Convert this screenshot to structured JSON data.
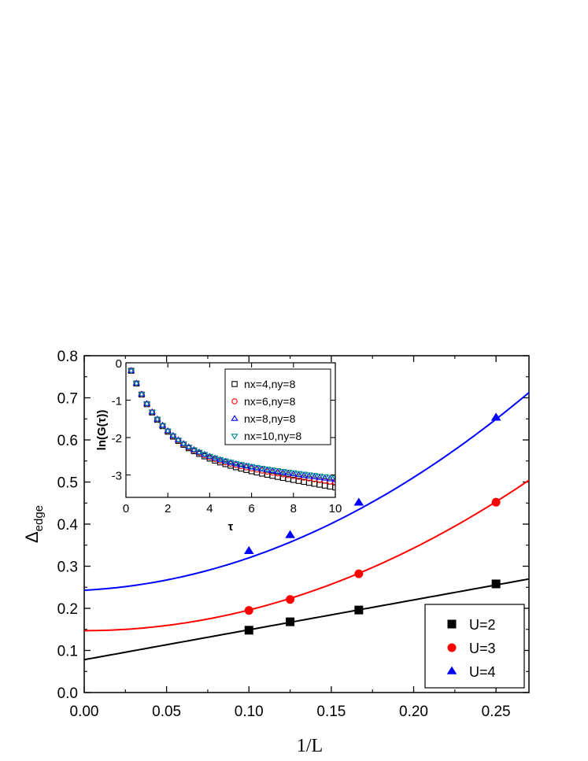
{
  "chart_data": [
    {
      "id": "main",
      "type": "scatter",
      "xlabel": "1/L",
      "ylabel_main": "Δ",
      "ylabel_sub": "edge",
      "xlim": [
        0,
        0.27
      ],
      "ylim": [
        0,
        0.8
      ],
      "xticks": [
        "0.00",
        "0.05",
        "0.10",
        "0.15",
        "0.20",
        "0.25"
      ],
      "yticks": [
        "0.0",
        "0.1",
        "0.2",
        "0.3",
        "0.4",
        "0.5",
        "0.6",
        "0.7",
        "0.8"
      ],
      "legend_position": "bottom-right",
      "series": [
        {
          "name": "U=2",
          "marker": "square",
          "color": "#000000",
          "x": [
            0.1,
            0.125,
            0.1667,
            0.25
          ],
          "y": [
            0.148,
            0.168,
            0.196,
            0.258
          ],
          "fit": {
            "kind": "poly",
            "coef": [
              0.078,
              0.71,
              0.0
            ]
          }
        },
        {
          "name": "U=3",
          "marker": "circle",
          "color": "#ff0000",
          "x": [
            0.1,
            0.125,
            0.1667,
            0.25
          ],
          "y": [
            0.195,
            0.221,
            0.282,
            0.452
          ],
          "fit": {
            "kind": "poly",
            "coef": [
              0.147,
              0.0,
              4.9
            ]
          }
        },
        {
          "name": "U=4",
          "marker": "triangle",
          "color": "#0000ff",
          "x": [
            0.1,
            0.125,
            0.1667,
            0.25
          ],
          "y": [
            0.336,
            0.374,
            0.451,
            0.653
          ],
          "fit": {
            "kind": "poly",
            "coef": [
              0.243,
              0.2,
              5.7
            ]
          }
        }
      ]
    },
    {
      "id": "inset",
      "type": "scatter",
      "xlabel": "τ",
      "ylabel": "ln(G(τ))",
      "xlim": [
        0,
        10
      ],
      "ylim": [
        -3.6,
        0
      ],
      "xticks": [
        "0",
        "2",
        "4",
        "6",
        "8",
        "10"
      ],
      "yticks": [
        "0",
        "-1",
        "-2",
        "-3"
      ],
      "legend_position": "top-right",
      "series": [
        {
          "name": "nx=4,ny=8",
          "marker": "open-square",
          "color": "#000000",
          "asym": 0.08,
          "slope": 0.102
        },
        {
          "name": "nx=6,ny=8",
          "marker": "open-circle",
          "color": "#ff0000",
          "asym": 0.185,
          "slope": 0.095
        },
        {
          "name": "nx=8,ny=8",
          "marker": "open-triangle",
          "color": "#0000ff",
          "asym": 0.25,
          "slope": 0.092
        },
        {
          "name": "nx=10,ny=8",
          "marker": "open-down-triangle",
          "color": "#008b8b",
          "asym": 0.3,
          "slope": 0.09
        }
      ]
    }
  ]
}
